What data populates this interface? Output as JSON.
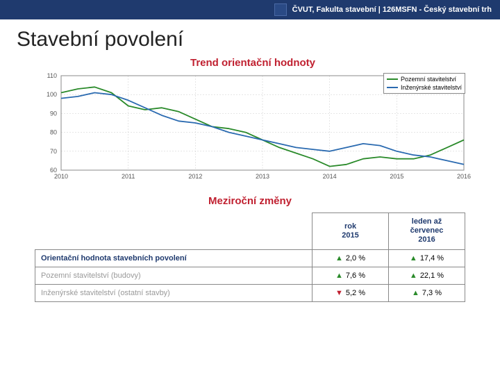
{
  "header": {
    "text": "ČVUT, Fakulta stavební | 126MSFN - Český stavební trh"
  },
  "page_title": "Stavební povolení",
  "chart": {
    "type": "line",
    "title": "Trend orientační hodnoty",
    "title_color": "#c02030",
    "title_fontsize": 15,
    "background_color": "#ffffff",
    "grid_color": "#cccccc",
    "border_color": "#888888",
    "xlim": [
      2010,
      2016
    ],
    "ylim": [
      60,
      110
    ],
    "ytick_step": 10,
    "yticks": [
      60,
      70,
      80,
      90,
      100,
      110
    ],
    "xticks": [
      2010,
      2011,
      2012,
      2013,
      2014,
      2015,
      2016
    ],
    "label_fontsize": 9,
    "line_width": 1.8,
    "series": [
      {
        "name": "Pozemní stavitelství",
        "color": "#2a8a2a",
        "points": [
          [
            2010.0,
            101
          ],
          [
            2010.25,
            103
          ],
          [
            2010.5,
            104
          ],
          [
            2010.75,
            101
          ],
          [
            2011.0,
            94
          ],
          [
            2011.25,
            92
          ],
          [
            2011.5,
            93
          ],
          [
            2011.75,
            91
          ],
          [
            2012.0,
            87
          ],
          [
            2012.25,
            83
          ],
          [
            2012.5,
            82
          ],
          [
            2012.75,
            80
          ],
          [
            2013.0,
            76
          ],
          [
            2013.25,
            72
          ],
          [
            2013.5,
            69
          ],
          [
            2013.75,
            66
          ],
          [
            2014.0,
            62
          ],
          [
            2014.25,
            63
          ],
          [
            2014.5,
            66
          ],
          [
            2014.75,
            67
          ],
          [
            2015.0,
            66
          ],
          [
            2015.25,
            66
          ],
          [
            2015.5,
            68
          ],
          [
            2015.75,
            72
          ],
          [
            2016.0,
            76
          ]
        ]
      },
      {
        "name": "Inženýrské stavitelství",
        "color": "#2a6ab0",
        "points": [
          [
            2010.0,
            98
          ],
          [
            2010.25,
            99
          ],
          [
            2010.5,
            101
          ],
          [
            2010.75,
            100
          ],
          [
            2011.0,
            97
          ],
          [
            2011.25,
            93
          ],
          [
            2011.5,
            89
          ],
          [
            2011.75,
            86
          ],
          [
            2012.0,
            85
          ],
          [
            2012.25,
            83
          ],
          [
            2012.5,
            80
          ],
          [
            2012.75,
            78
          ],
          [
            2013.0,
            76
          ],
          [
            2013.25,
            74
          ],
          [
            2013.5,
            72
          ],
          [
            2013.75,
            71
          ],
          [
            2014.0,
            70
          ],
          [
            2014.25,
            72
          ],
          [
            2014.5,
            74
          ],
          [
            2014.75,
            73
          ],
          [
            2015.0,
            70
          ],
          [
            2015.25,
            68
          ],
          [
            2015.5,
            67
          ],
          [
            2015.75,
            65
          ],
          [
            2016.0,
            63
          ]
        ]
      }
    ],
    "legend_position": "top-right"
  },
  "changes": {
    "title": "Meziroční změny",
    "columns": [
      {
        "line1": "rok",
        "line2": "2015"
      },
      {
        "line1": "leden až červenec",
        "line2": "2016"
      }
    ],
    "rows": [
      {
        "label": "Orientační hodnota stavebních povolení",
        "bold": true,
        "cells": [
          {
            "dir": "up",
            "val": "2,0 %"
          },
          {
            "dir": "up",
            "val": "17,4 %"
          }
        ]
      },
      {
        "label": "Pozemní stavitelství (budovy)",
        "gray": true,
        "cells": [
          {
            "dir": "up",
            "val": "7,6 %"
          },
          {
            "dir": "up",
            "val": "22,1 %"
          }
        ]
      },
      {
        "label": "Inženýrské stavitelství (ostatní stavby)",
        "gray": true,
        "cells": [
          {
            "dir": "down",
            "val": "5,2 %"
          },
          {
            "dir": "up",
            "val": "7,3 %"
          }
        ]
      }
    ]
  }
}
